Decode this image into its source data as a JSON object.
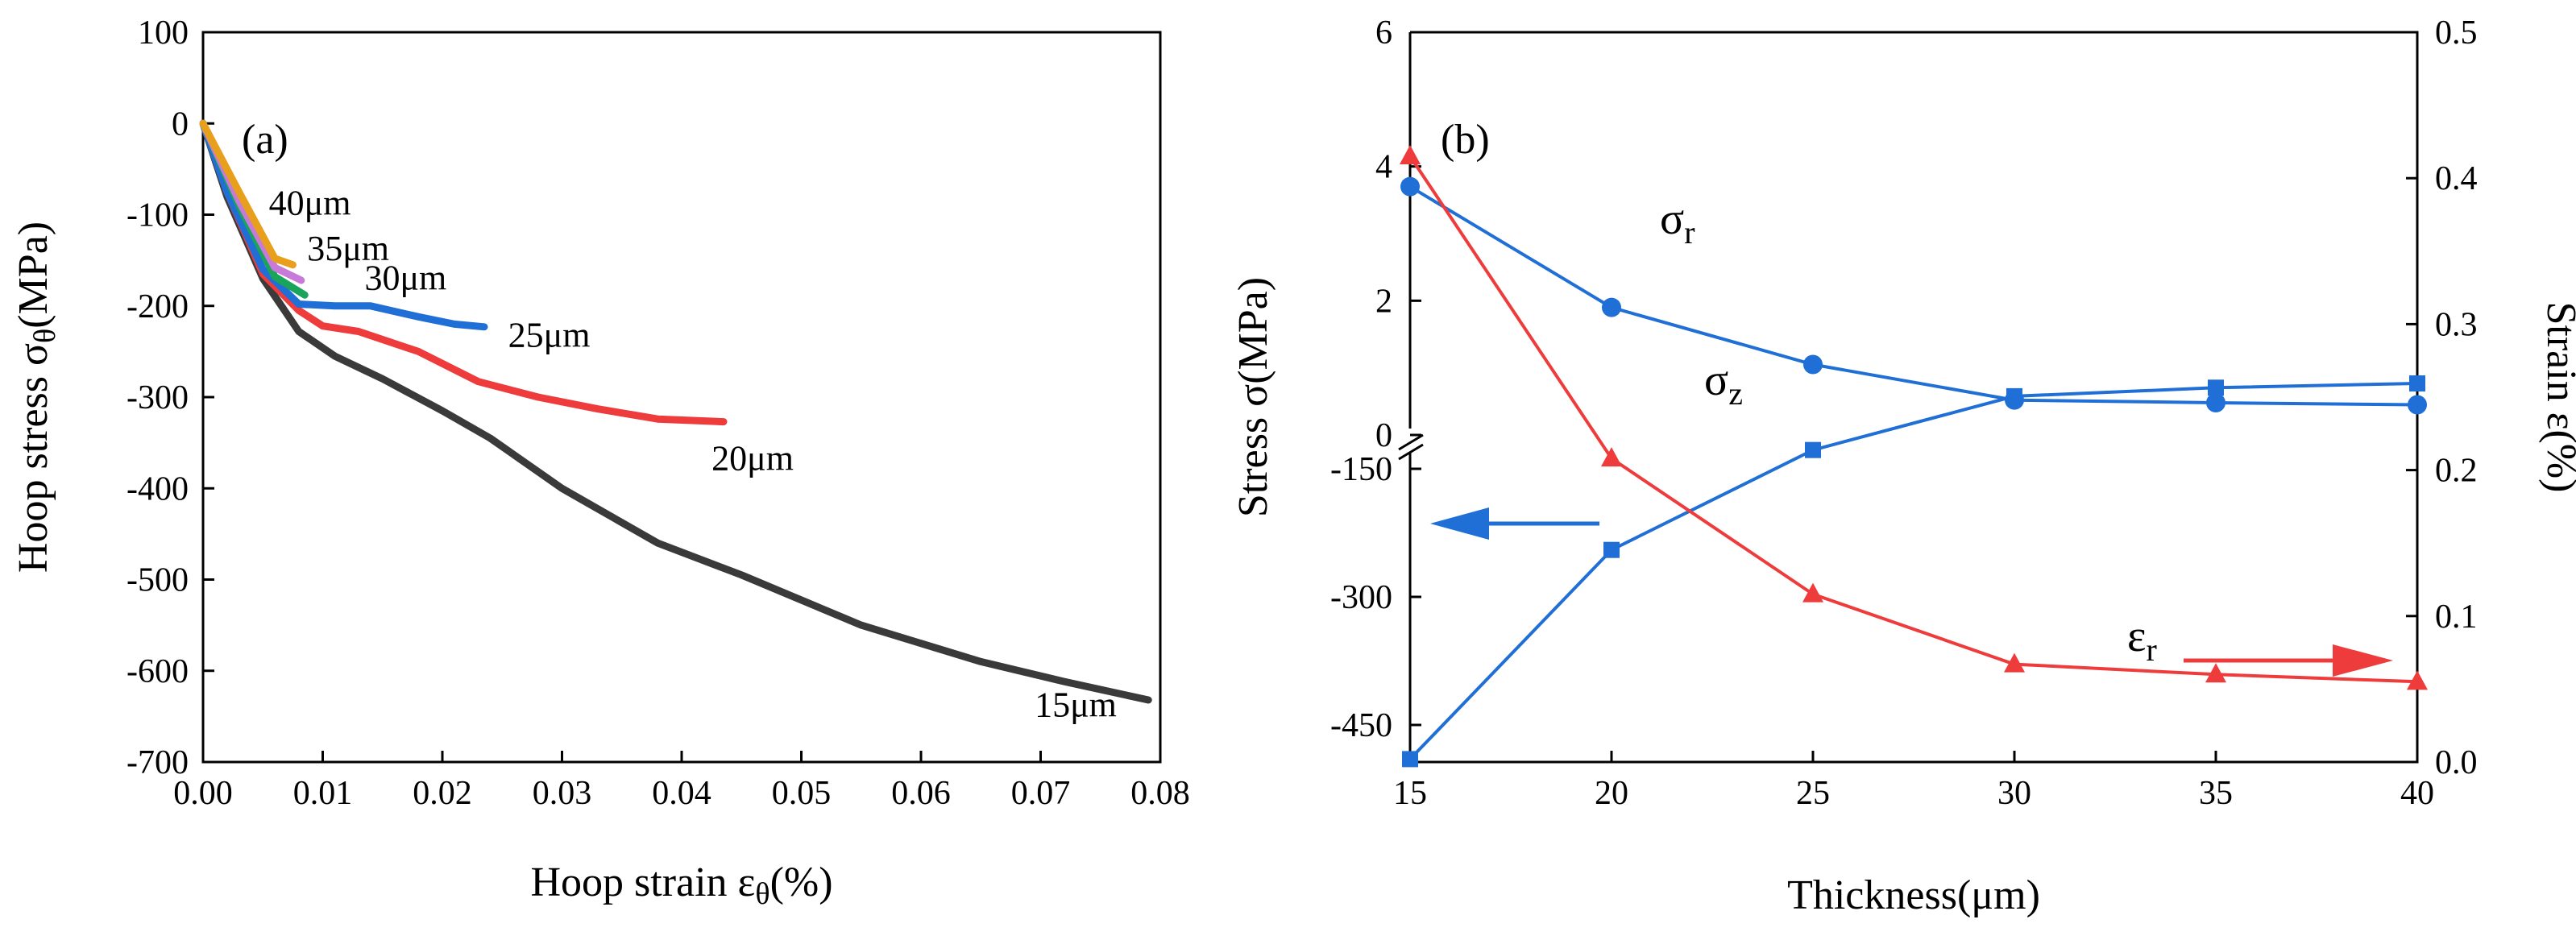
{
  "colors": {
    "c15": "#3a3a3a",
    "c20": "#ee3b3b",
    "c25": "#1f6fd6",
    "c30": "#1aa35a",
    "c35": "#c77ad8",
    "c40": "#e8a01c",
    "blue": "#1f6fd6",
    "red": "#ee3b3b"
  },
  "chart_data": [
    {
      "type": "line",
      "panel_label": "(a)",
      "xlabel": "Hoop strain εθ(%)",
      "xlabel_base": "Hoop strain ε",
      "xlabel_sub": "θ",
      "xlabel_tail": "(%)",
      "ylabel": "Hoop stress σθ(MPa)",
      "ylabel_base": "Hoop stress σ",
      "ylabel_sub": "θ",
      "ylabel_tail": "(MPa)",
      "xlim": [
        0,
        0.08
      ],
      "ylim": [
        -700,
        100
      ],
      "xticks": [
        0,
        0.01,
        0.02,
        0.03,
        0.04,
        0.05,
        0.06,
        0.07,
        0.08
      ],
      "xtick_labels": [
        "0.00",
        "0.01",
        "0.02",
        "0.03",
        "0.04",
        "0.05",
        "0.06",
        "0.07",
        "0.08"
      ],
      "yticks": [
        100,
        0,
        -100,
        -200,
        -300,
        -400,
        -500,
        -600,
        -700
      ],
      "ytick_labels": [
        "100",
        "0",
        "-100",
        "-200",
        "-300",
        "-400",
        "-500",
        "-600",
        "-700"
      ],
      "series": [
        {
          "name": "15μm",
          "color_key": "c15",
          "points": [
            [
              0,
              0
            ],
            [
              0.002,
              -80
            ],
            [
              0.005,
              -170
            ],
            [
              0.008,
              -228
            ],
            [
              0.011,
              -255
            ],
            [
              0.015,
              -280
            ],
            [
              0.02,
              -315
            ],
            [
              0.024,
              -345
            ],
            [
              0.03,
              -400
            ],
            [
              0.038,
              -460
            ],
            [
              0.045,
              -495
            ],
            [
              0.055,
              -550
            ],
            [
              0.065,
              -590
            ],
            [
              0.072,
              -612
            ],
            [
              0.079,
              -632
            ]
          ]
        },
        {
          "name": "20μm",
          "color_key": "c20",
          "points": [
            [
              0,
              0
            ],
            [
              0.002,
              -75
            ],
            [
              0.005,
              -165
            ],
            [
              0.008,
              -205
            ],
            [
              0.01,
              -222
            ],
            [
              0.013,
              -228
            ],
            [
              0.018,
              -250
            ],
            [
              0.023,
              -283
            ],
            [
              0.028,
              -300
            ],
            [
              0.033,
              -313
            ],
            [
              0.038,
              -324
            ],
            [
              0.0435,
              -327
            ]
          ]
        },
        {
          "name": "25μm",
          "color_key": "c25",
          "points": [
            [
              0,
              0
            ],
            [
              0.002,
              -75
            ],
            [
              0.005,
              -160
            ],
            [
              0.008,
              -198
            ],
            [
              0.011,
              -200
            ],
            [
              0.014,
              -200
            ],
            [
              0.018,
              -212
            ],
            [
              0.021,
              -220
            ],
            [
              0.0235,
              -223
            ]
          ]
        },
        {
          "name": "30μm",
          "color_key": "c30",
          "points": [
            [
              0,
              0
            ],
            [
              0.003,
              -90
            ],
            [
              0.006,
              -168
            ],
            [
              0.0085,
              -188
            ]
          ]
        },
        {
          "name": "35μm",
          "color_key": "c35",
          "points": [
            [
              0,
              0
            ],
            [
              0.003,
              -85
            ],
            [
              0.006,
              -158
            ],
            [
              0.0082,
              -172
            ]
          ]
        },
        {
          "name": "40μm",
          "color_key": "c40",
          "points": [
            [
              0,
              0
            ],
            [
              0.003,
              -75
            ],
            [
              0.006,
              -148
            ],
            [
              0.0075,
              -155
            ]
          ]
        }
      ],
      "annotations": [
        {
          "text": "40μm",
          "at": [
            0.0055,
            -100
          ]
        },
        {
          "text": "35μm",
          "at": [
            0.0087,
            -150
          ]
        },
        {
          "text": "30μm",
          "at": [
            0.0135,
            -182
          ]
        },
        {
          "text": "25μm",
          "at": [
            0.0255,
            -245
          ]
        },
        {
          "text": "20μm",
          "at": [
            0.0425,
            -380
          ]
        },
        {
          "text": "15μm",
          "at": [
            0.0695,
            -650
          ]
        }
      ]
    },
    {
      "type": "line",
      "panel_label": "(b)",
      "xlabel": "Thickness(μm)",
      "ylabel_left": "Stress σ(MPa)",
      "ylabel_right": "Strain ε(%)",
      "xlim": [
        15,
        40
      ],
      "xticks": [
        15,
        20,
        25,
        30,
        35,
        40
      ],
      "left_upper_ylim": [
        0,
        6
      ],
      "left_upper_ticks": [
        "0",
        "2",
        "4",
        "6"
      ],
      "left_lower_ylim": [
        -500,
        -50
      ],
      "left_lower_ticks": [
        "-150",
        "-300",
        "-450"
      ],
      "right_ylim": [
        0,
        0.5
      ],
      "right_ticks": [
        "0.0",
        "0.1",
        "0.2",
        "0.3",
        "0.4",
        "0.5"
      ],
      "series": [
        {
          "name": "σr",
          "base": "σ",
          "sub": "r",
          "axis": "left_upper",
          "marker": "circle",
          "color_key": "blue",
          "x": [
            15,
            20,
            25,
            30,
            35,
            40
          ],
          "values": [
            3.7,
            1.9,
            1.05,
            0.52,
            0.48,
            0.45
          ]
        },
        {
          "name": "σz",
          "base": "σ",
          "sub": "z",
          "axis": "left_lower",
          "marker": "square",
          "color_key": "blue",
          "x": [
            15,
            20,
            25,
            30,
            35,
            40
          ],
          "values": [
            -490,
            -245,
            -128,
            -65,
            -55,
            -50
          ]
        },
        {
          "name": "εr",
          "base": "ε",
          "sub": "r",
          "axis": "right",
          "marker": "triangle",
          "color_key": "red",
          "x": [
            15,
            20,
            25,
            30,
            35,
            40
          ],
          "values": [
            0.415,
            0.208,
            0.115,
            0.067,
            0.06,
            0.055
          ]
        }
      ]
    }
  ]
}
